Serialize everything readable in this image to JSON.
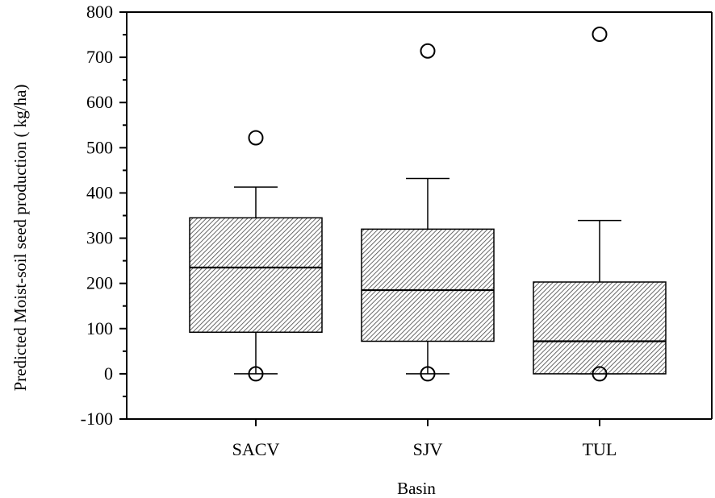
{
  "chart_data": {
    "type": "boxplot",
    "xlabel": "Basin",
    "ylabel": "Predicted Moist-soil seed production ( kg/ha)",
    "ylim": [
      -100,
      800
    ],
    "yticks": [
      -100,
      0,
      100,
      200,
      300,
      400,
      500,
      600,
      700,
      800
    ],
    "ytick_labels": [
      "-100",
      "0",
      "100",
      "200",
      "300",
      "400",
      "500",
      "600",
      "700",
      "800"
    ],
    "categories": [
      "SACV",
      "SJV",
      "TUL"
    ],
    "boxes": [
      {
        "category": "SACV",
        "whisker_low": 0,
        "q1": 92,
        "median": 235,
        "q3": 345,
        "whisker_high": 413,
        "outliers": [
          522,
          0
        ]
      },
      {
        "category": "SJV",
        "whisker_low": 0,
        "q1": 72,
        "median": 185,
        "q3": 320,
        "whisker_high": 432,
        "outliers": [
          714,
          0
        ]
      },
      {
        "category": "TUL",
        "whisker_low": 0,
        "q1": 0,
        "median": 72,
        "q3": 203,
        "whisker_high": 339,
        "outliers": [
          751,
          0
        ]
      }
    ],
    "box_fill": "hatched",
    "colors": {
      "stroke": "#000000",
      "fill": "#ffffff",
      "hatch": "#444444"
    }
  }
}
